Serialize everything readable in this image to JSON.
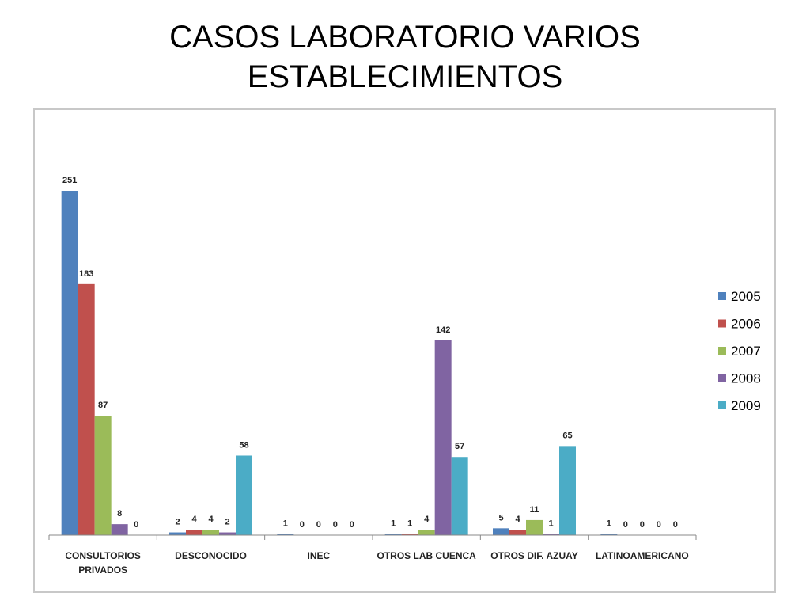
{
  "title": {
    "line1": "CASOS LABORATORIO VARIOS",
    "line2": "ESTABLECIMIENTOS"
  },
  "chart_data": {
    "type": "bar",
    "categories": [
      [
        "CONSULTORIOS",
        "PRIVADOS"
      ],
      [
        "DESCONOCIDO"
      ],
      [
        "INEC"
      ],
      [
        "OTROS LAB CUENCA"
      ],
      [
        "OTROS DIF. AZUAY"
      ],
      [
        "LATINOAMERICANO"
      ]
    ],
    "series": [
      {
        "name": "2005",
        "color": "#4f81bd",
        "values": [
          251,
          2,
          1,
          1,
          5,
          1
        ]
      },
      {
        "name": "2006",
        "color": "#c0504d",
        "values": [
          183,
          4,
          0,
          1,
          4,
          0
        ]
      },
      {
        "name": "2007",
        "color": "#9bbb59",
        "values": [
          87,
          4,
          0,
          4,
          11,
          0
        ]
      },
      {
        "name": "2008",
        "color": "#8064a2",
        "values": [
          8,
          2,
          0,
          142,
          1,
          0
        ]
      },
      {
        "name": "2009",
        "color": "#4bacc6",
        "values": [
          0,
          58,
          0,
          57,
          65,
          0
        ]
      }
    ],
    "ylim": [
      0,
      251
    ],
    "grid": false,
    "legend": "right"
  }
}
